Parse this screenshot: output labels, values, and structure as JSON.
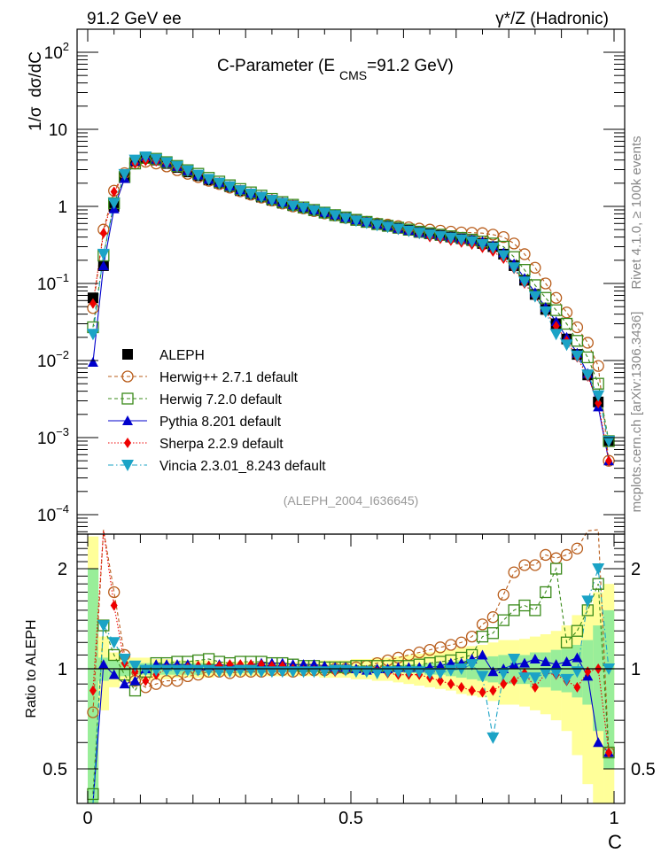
{
  "header": {
    "left": "91.2 GeV ee",
    "right": "γ*/Z (Hadronic)"
  },
  "side_labels": {
    "rivet": "Rivet 4.1.0, ≥ 100k events",
    "mcplots": "mcplots.cern.ch [arXiv:1306.3436]"
  },
  "chart_data": [
    {
      "type": "scatter",
      "panel": "main",
      "title": "C-Parameter (E CMS=91.2 GeV)",
      "title_main": "C-Parameter (E",
      "title_sub": "CMS",
      "title_end": "=91.2 GeV)",
      "xlabel": "C",
      "ylabel": "1/σ  dσ/dC",
      "yscale": "log",
      "xlim": [
        0,
        1
      ],
      "ylim": [
        7e-05,
        200
      ],
      "yticks": [
        {
          "v": 100,
          "base": "10",
          "exp": "2"
        },
        {
          "v": 10,
          "label": "10"
        },
        {
          "v": 1,
          "label": "1"
        },
        {
          "v": 0.1,
          "base": "10",
          "exp": "−1"
        },
        {
          "v": 0.01,
          "base": "10",
          "exp": "−2"
        },
        {
          "v": 0.001,
          "base": "10",
          "exp": "−3"
        },
        {
          "v": 0.0001,
          "base": "10",
          "exp": "−4"
        }
      ],
      "analysis_label": "(ALEPH_2004_I636645)",
      "legend_position": "bottom-left",
      "x": [
        0.01,
        0.03,
        0.05,
        0.07,
        0.09,
        0.11,
        0.13,
        0.15,
        0.17,
        0.19,
        0.21,
        0.23,
        0.25,
        0.27,
        0.29,
        0.31,
        0.33,
        0.35,
        0.37,
        0.39,
        0.41,
        0.43,
        0.45,
        0.47,
        0.49,
        0.51,
        0.53,
        0.55,
        0.57,
        0.59,
        0.61,
        0.63,
        0.65,
        0.67,
        0.69,
        0.71,
        0.73,
        0.75,
        0.77,
        0.79,
        0.81,
        0.83,
        0.85,
        0.87,
        0.89,
        0.91,
        0.93,
        0.95,
        0.97,
        0.99
      ],
      "series": [
        {
          "name": "ALEPH",
          "color": "#000000",
          "marker": "square",
          "line": "none",
          "values": [
            0.065,
            0.17,
            1.0,
            2.5,
            3.9,
            4.3,
            4.0,
            3.6,
            3.2,
            2.8,
            2.5,
            2.2,
            2.0,
            1.8,
            1.6,
            1.45,
            1.32,
            1.2,
            1.1,
            1.02,
            0.95,
            0.88,
            0.82,
            0.76,
            0.71,
            0.66,
            0.62,
            0.58,
            0.55,
            0.52,
            0.49,
            0.46,
            0.44,
            0.42,
            0.4,
            0.38,
            0.36,
            0.33,
            0.3,
            0.24,
            0.17,
            0.11,
            0.072,
            0.046,
            0.03,
            0.019,
            0.012,
            0.0065,
            0.0029,
            0.0009
          ]
        },
        {
          "name": "Herwig++ 2.7.1 default",
          "color": "#b85c1a",
          "marker": "circle-open",
          "line": "dashed",
          "values": [
            0.048,
            0.5,
            1.6,
            2.7,
            3.6,
            3.8,
            3.6,
            3.3,
            2.95,
            2.65,
            2.4,
            2.15,
            1.95,
            1.75,
            1.57,
            1.42,
            1.3,
            1.19,
            1.09,
            1.0,
            0.94,
            0.87,
            0.81,
            0.76,
            0.71,
            0.665,
            0.63,
            0.6,
            0.58,
            0.555,
            0.535,
            0.515,
            0.5,
            0.485,
            0.47,
            0.46,
            0.455,
            0.45,
            0.43,
            0.4,
            0.33,
            0.24,
            0.16,
            0.1,
            0.065,
            0.042,
            0.027,
            0.017,
            0.0085,
            0.0005
          ]
        },
        {
          "name": "Herwig 7.2.0 default",
          "color": "#3a8a1a",
          "marker": "square-open",
          "line": "dashed",
          "values": [
            0.027,
            0.23,
            1.1,
            2.4,
            3.6,
            4.25,
            4.15,
            3.75,
            3.35,
            2.95,
            2.65,
            2.35,
            2.1,
            1.88,
            1.68,
            1.52,
            1.38,
            1.25,
            1.14,
            1.05,
            0.97,
            0.9,
            0.83,
            0.77,
            0.72,
            0.67,
            0.63,
            0.59,
            0.56,
            0.53,
            0.5,
            0.47,
            0.45,
            0.43,
            0.41,
            0.39,
            0.37,
            0.35,
            0.33,
            0.3,
            0.22,
            0.15,
            0.095,
            0.065,
            0.045,
            0.03,
            0.018,
            0.011,
            0.005,
            0.0009
          ]
        },
        {
          "name": "Pythia 8.201 default",
          "color": "#0000cc",
          "marker": "triangle-up",
          "line": "solid",
          "values": [
            0.0095,
            0.17,
            0.93,
            2.3,
            3.9,
            4.4,
            4.1,
            3.7,
            3.3,
            2.9,
            2.55,
            2.25,
            2.05,
            1.84,
            1.64,
            1.49,
            1.36,
            1.24,
            1.14,
            1.05,
            0.98,
            0.91,
            0.84,
            0.78,
            0.72,
            0.67,
            0.63,
            0.59,
            0.56,
            0.52,
            0.49,
            0.46,
            0.44,
            0.42,
            0.4,
            0.38,
            0.37,
            0.35,
            0.31,
            0.25,
            0.18,
            0.117,
            0.076,
            0.049,
            0.032,
            0.02,
            0.0125,
            0.0068,
            0.0025,
            0.0005
          ]
        },
        {
          "name": "Sherpa 2.2.9 default",
          "color": "#ee0000",
          "marker": "diamond",
          "line": "dotted",
          "values": [
            0.055,
            0.45,
            1.55,
            2.6,
            3.6,
            3.9,
            3.85,
            3.6,
            3.2,
            2.85,
            2.55,
            2.25,
            2.05,
            1.83,
            1.63,
            1.48,
            1.35,
            1.23,
            1.13,
            1.04,
            0.96,
            0.89,
            0.82,
            0.76,
            0.71,
            0.66,
            0.61,
            0.57,
            0.54,
            0.5,
            0.47,
            0.44,
            0.4,
            0.38,
            0.36,
            0.34,
            0.32,
            0.29,
            0.26,
            0.21,
            0.155,
            0.1,
            0.067,
            0.043,
            0.028,
            0.018,
            0.011,
            0.0062,
            0.0028,
            0.0005
          ]
        },
        {
          "name": "Vincia 2.3.01_8.243 default",
          "color": "#1ba3c6",
          "marker": "triangle-down",
          "line": "dashdot",
          "values": [
            0.022,
            0.24,
            1.1,
            2.6,
            4.0,
            4.4,
            4.1,
            3.7,
            3.3,
            2.9,
            2.55,
            2.25,
            2.0,
            1.8,
            1.6,
            1.45,
            1.32,
            1.2,
            1.1,
            1.01,
            0.95,
            0.88,
            0.82,
            0.76,
            0.7,
            0.65,
            0.61,
            0.57,
            0.54,
            0.51,
            0.48,
            0.45,
            0.43,
            0.41,
            0.39,
            0.37,
            0.35,
            0.32,
            0.29,
            0.23,
            0.16,
            0.105,
            0.068,
            0.043,
            0.022,
            0.016,
            0.0115,
            0.0065,
            0.0035,
            0.0009
          ]
        }
      ]
    },
    {
      "type": "scatter",
      "panel": "ratio",
      "xlabel": "C",
      "ylabel": "Ratio to ALEPH",
      "yscale": "log",
      "xlim": [
        0,
        1
      ],
      "ylim": [
        0.42,
        2.42
      ],
      "xticks": [
        {
          "v": 0,
          "label": "0"
        },
        {
          "v": 0.5,
          "label": "0.5"
        },
        {
          "v": 1,
          "label": "1"
        }
      ],
      "yticks": [
        {
          "v": 2,
          "label": "2"
        },
        {
          "v": 1,
          "label": "1"
        },
        {
          "v": 0.5,
          "label": "0.5"
        }
      ],
      "band_stat_color": "#99ee99",
      "band_total_color": "#ffff99",
      "band_stat_halfwidth": [
        1.0,
        0.08,
        0.06,
        0.05,
        0.04,
        0.04,
        0.04,
        0.04,
        0.04,
        0.04,
        0.04,
        0.03,
        0.03,
        0.03,
        0.03,
        0.03,
        0.03,
        0.02,
        0.02,
        0.02,
        0.02,
        0.02,
        0.02,
        0.02,
        0.02,
        0.02,
        0.02,
        0.02,
        0.02,
        0.02,
        0.03,
        0.03,
        0.04,
        0.04,
        0.05,
        0.06,
        0.07,
        0.08,
        0.09,
        0.1,
        0.1,
        0.1,
        0.12,
        0.12,
        0.14,
        0.15,
        0.18,
        0.22,
        0.35,
        0.5
      ],
      "band_total_halfwidth": [
        1.5,
        0.25,
        0.12,
        0.09,
        0.08,
        0.08,
        0.07,
        0.07,
        0.06,
        0.06,
        0.06,
        0.06,
        0.05,
        0.05,
        0.05,
        0.05,
        0.05,
        0.05,
        0.05,
        0.05,
        0.05,
        0.05,
        0.06,
        0.06,
        0.06,
        0.07,
        0.07,
        0.08,
        0.08,
        0.09,
        0.1,
        0.11,
        0.12,
        0.13,
        0.14,
        0.16,
        0.17,
        0.18,
        0.2,
        0.22,
        0.22,
        0.23,
        0.25,
        0.27,
        0.3,
        0.35,
        0.45,
        0.55,
        0.7,
        0.8
      ],
      "series": [
        {
          "name": "Herwig++ 2.7.1 default",
          "values": [
            0.74,
            2.9,
            1.7,
            1.1,
            0.92,
            0.88,
            0.9,
            0.92,
            0.92,
            0.95,
            0.96,
            0.98,
            0.98,
            0.97,
            0.98,
            0.98,
            0.98,
            0.99,
            0.99,
            0.98,
            0.99,
            0.99,
            0.99,
            1.0,
            1.0,
            1.01,
            1.02,
            1.04,
            1.06,
            1.08,
            1.1,
            1.12,
            1.14,
            1.16,
            1.18,
            1.2,
            1.25,
            1.36,
            1.43,
            1.67,
            1.95,
            2.05,
            2.05,
            2.2,
            2.15,
            2.2,
            2.3,
            2.6,
            2.9,
            0.56
          ]
        },
        {
          "name": "Herwig 7.2.0 default",
          "values": [
            0.42,
            1.35,
            1.1,
            0.96,
            0.86,
            0.98,
            1.04,
            1.04,
            1.05,
            1.05,
            1.06,
            1.07,
            1.05,
            1.04,
            1.05,
            1.05,
            1.05,
            1.04,
            1.04,
            1.03,
            1.02,
            1.02,
            1.01,
            1.01,
            1.01,
            1.02,
            1.02,
            1.02,
            1.02,
            1.02,
            1.02,
            1.03,
            1.04,
            1.05,
            1.06,
            1.08,
            1.1,
            1.25,
            1.28,
            1.4,
            1.5,
            1.55,
            1.5,
            1.7,
            2.0,
            1.2,
            1.3,
            1.5,
            1.8,
            0.56
          ]
        },
        {
          "name": "Pythia 8.201 default",
          "values": [
            0.15,
            1.03,
            0.96,
            0.9,
            0.92,
            1.0,
            1.03,
            1.03,
            1.03,
            1.03,
            1.02,
            1.02,
            1.03,
            1.02,
            1.02,
            1.03,
            1.04,
            1.04,
            1.04,
            1.03,
            1.03,
            1.03,
            1.02,
            1.01,
            1.01,
            1.0,
            0.99,
            1.0,
            1.0,
            1.01,
            1.01,
            1.01,
            1.01,
            1.02,
            1.04,
            1.04,
            1.07,
            1.1,
            0.98,
            1.0,
            1.03,
            1.04,
            1.07,
            1.05,
            1.03,
            1.05,
            1.08,
            0.95,
            0.6,
            0.56
          ]
        },
        {
          "name": "Sherpa 2.2.9 default",
          "values": [
            0.86,
            2.6,
            1.55,
            1.04,
            0.98,
            0.92,
            0.96,
            1.0,
            1.0,
            1.01,
            1.02,
            1.02,
            1.02,
            1.03,
            1.03,
            1.03,
            1.03,
            1.02,
            1.02,
            1.0,
            0.99,
            0.99,
            0.98,
            0.98,
            0.99,
            0.98,
            0.98,
            0.98,
            0.97,
            0.96,
            0.96,
            0.96,
            0.94,
            0.92,
            0.9,
            0.88,
            0.86,
            0.85,
            0.86,
            0.9,
            0.92,
            0.97,
            0.88,
            0.97,
            0.96,
            0.92,
            0.88,
            0.98,
            1.0,
            0.56
          ]
        },
        {
          "name": "Vincia 2.3.01_8.243 default",
          "values": [
            0.3,
            1.35,
            1.2,
            1.07,
            1.02,
            0.99,
            0.99,
            0.99,
            0.99,
            0.99,
            0.99,
            0.99,
            0.98,
            0.98,
            0.99,
            0.99,
            0.98,
            0.98,
            0.98,
            0.98,
            0.98,
            0.98,
            0.98,
            0.99,
            0.99,
            0.98,
            0.98,
            0.97,
            0.98,
            0.98,
            0.98,
            0.98,
            0.97,
            0.97,
            0.99,
            1.0,
            1.03,
            0.95,
            0.62,
            0.97,
            1.07,
            0.94,
            0.94,
            0.97,
            0.97,
            0.93,
            0.98,
            1.6,
            2.0,
            1.0
          ]
        }
      ]
    }
  ]
}
